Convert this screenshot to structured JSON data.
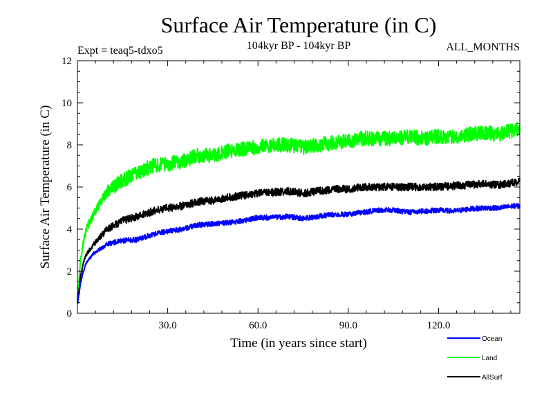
{
  "chart_data": {
    "type": "line",
    "title": "Surface Air Temperature (in C)",
    "subtitle": "104kyr BP - 104kyr BP",
    "left_label": "Expt = teaq5-tdxo5",
    "right_label": "ALL_MONTHS",
    "xlabel": "Time (in years since start)",
    "ylabel": "Surface Air Temperature (in C)",
    "xlim": [
      0,
      147
    ],
    "ylim": [
      0,
      12
    ],
    "x_ticks": [
      30,
      60,
      90,
      120
    ],
    "x_tick_labels": [
      "30.0",
      "60.0",
      "90.0",
      "120.0"
    ],
    "y_ticks": [
      0,
      2,
      4,
      6,
      8,
      10,
      12
    ],
    "y_tick_labels": [
      "0",
      "2",
      "4",
      "6",
      "8",
      "10",
      "12"
    ],
    "series": [
      {
        "name": "Ocean",
        "color": "#0000ff",
        "x": [
          0,
          1,
          2,
          3,
          5,
          8,
          10,
          15,
          20,
          25,
          30,
          35,
          40,
          45,
          50,
          55,
          60,
          65,
          70,
          75,
          80,
          85,
          90,
          95,
          100,
          105,
          110,
          115,
          120,
          125,
          130,
          135,
          140,
          145,
          147
        ],
        "values": [
          0.4,
          1.4,
          2.0,
          2.4,
          2.8,
          3.1,
          3.3,
          3.45,
          3.5,
          3.75,
          3.9,
          4.0,
          4.2,
          4.25,
          4.3,
          4.4,
          4.55,
          4.55,
          4.6,
          4.5,
          4.6,
          4.7,
          4.7,
          4.8,
          4.9,
          4.9,
          4.8,
          4.85,
          4.9,
          4.85,
          4.95,
          5.0,
          5.0,
          5.1,
          5.1
        ]
      },
      {
        "name": "Land",
        "color": "#00ff00",
        "x": [
          0,
          1,
          2,
          3,
          5,
          8,
          10,
          15,
          20,
          25,
          30,
          35,
          40,
          45,
          50,
          55,
          60,
          65,
          70,
          75,
          80,
          85,
          90,
          95,
          100,
          105,
          110,
          115,
          120,
          125,
          130,
          135,
          140,
          145,
          147
        ],
        "values": [
          0.6,
          2.5,
          3.4,
          4.0,
          4.6,
          5.4,
          5.8,
          6.3,
          6.7,
          7.0,
          7.1,
          7.2,
          7.5,
          7.5,
          7.7,
          7.8,
          7.9,
          8.0,
          8.0,
          7.9,
          8.0,
          8.1,
          8.2,
          8.3,
          8.3,
          8.3,
          8.4,
          8.3,
          8.4,
          8.4,
          8.5,
          8.6,
          8.5,
          8.7,
          8.8
        ]
      },
      {
        "name": "AllSurf",
        "color": "#000000",
        "x": [
          0,
          1,
          2,
          3,
          5,
          8,
          10,
          15,
          20,
          25,
          30,
          35,
          40,
          45,
          50,
          55,
          60,
          65,
          70,
          75,
          80,
          85,
          90,
          95,
          100,
          105,
          110,
          115,
          120,
          125,
          130,
          135,
          140,
          145,
          147
        ],
        "values": [
          0.5,
          1.7,
          2.4,
          2.8,
          3.2,
          3.7,
          4.0,
          4.4,
          4.6,
          4.85,
          5.0,
          5.1,
          5.3,
          5.35,
          5.5,
          5.6,
          5.7,
          5.75,
          5.8,
          5.7,
          5.8,
          5.9,
          5.9,
          6.0,
          6.0,
          6.0,
          6.0,
          6.0,
          6.0,
          6.05,
          6.1,
          6.15,
          6.1,
          6.2,
          6.25
        ]
      }
    ],
    "noise_amplitude": [
      0.12,
      0.35,
      0.18
    ],
    "legend_position": "bottom-right"
  }
}
